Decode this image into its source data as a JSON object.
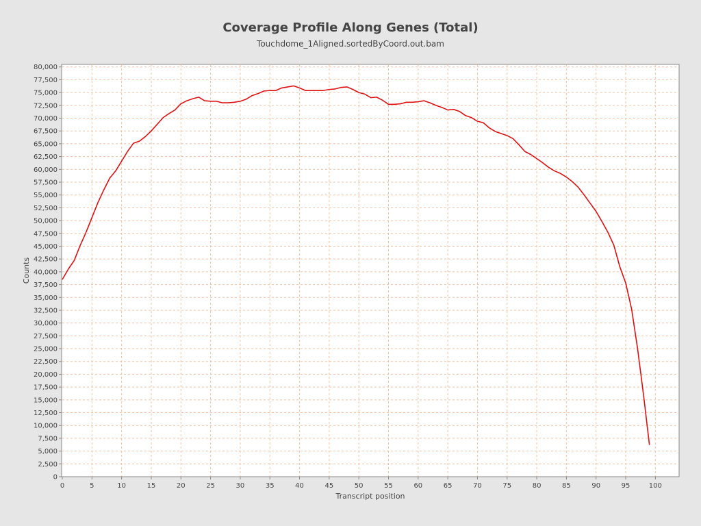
{
  "chart_data": {
    "type": "line",
    "title": "Coverage Profile Along Genes (Total)",
    "subtitle": "Touchdome_1Aligned.sortedByCoord.out.bam",
    "xlabel": "Transcript position",
    "ylabel": "Counts",
    "xlim": [
      0,
      104
    ],
    "ylim": [
      0,
      80500
    ],
    "x_ticks": [
      0,
      5,
      10,
      15,
      20,
      25,
      30,
      35,
      40,
      45,
      50,
      55,
      60,
      65,
      70,
      75,
      80,
      85,
      90,
      95,
      100
    ],
    "x_tick_labels": [
      "0",
      "5",
      "10",
      "15",
      "20",
      "25",
      "30",
      "35",
      "40",
      "45",
      "50",
      "55",
      "60",
      "65",
      "70",
      "75",
      "80",
      "85",
      "90",
      "95",
      "100"
    ],
    "y_ticks": [
      0,
      2500,
      5000,
      7500,
      10000,
      12500,
      15000,
      17500,
      20000,
      22500,
      25000,
      27500,
      30000,
      32500,
      35000,
      37500,
      40000,
      42500,
      45000,
      47500,
      50000,
      52500,
      55000,
      57500,
      60000,
      62500,
      65000,
      67500,
      70000,
      72500,
      75000,
      77500,
      80000
    ],
    "y_tick_labels": [
      "0",
      "2,500",
      "5,000",
      "7,500",
      "10,000",
      "12,500",
      "15,000",
      "17,500",
      "20,000",
      "22,500",
      "25,000",
      "27,500",
      "30,000",
      "32,500",
      "35,000",
      "37,500",
      "40,000",
      "42,500",
      "45,000",
      "47,500",
      "50,000",
      "52,500",
      "55,000",
      "57,500",
      "60,000",
      "62,500",
      "65,000",
      "67,500",
      "70,000",
      "72,500",
      "75,000",
      "77,500",
      "80,000"
    ],
    "grid": true,
    "line_color": "#dd1111",
    "grid_color": "#f2c0a0",
    "series": [
      {
        "x": [
          0,
          1,
          2,
          3,
          4,
          5,
          6,
          7,
          8,
          9,
          10,
          11,
          12,
          13,
          14,
          15,
          16,
          17,
          18,
          19,
          20,
          21,
          22,
          23,
          24,
          25,
          26,
          27,
          28,
          29,
          30,
          31,
          32,
          33,
          34,
          35,
          36,
          37,
          38,
          39,
          40,
          41,
          42,
          43,
          44,
          45,
          46,
          47,
          48,
          49,
          50,
          51,
          52,
          53,
          54,
          55,
          56,
          57,
          58,
          59,
          60,
          61,
          62,
          63,
          64,
          65,
          66,
          67,
          68,
          69,
          70,
          71,
          72,
          73,
          74,
          75,
          76,
          77,
          78,
          79,
          80,
          81,
          82,
          83,
          84,
          85,
          86,
          87,
          88,
          89,
          90,
          91,
          92,
          93,
          94,
          95,
          96,
          97,
          98,
          99
        ],
        "values": [
          38500,
          40500,
          42200,
          45100,
          47700,
          50600,
          53500,
          56000,
          58300,
          59700,
          61600,
          63500,
          65100,
          65500,
          66400,
          67500,
          68800,
          70100,
          70900,
          71600,
          72800,
          73400,
          73800,
          74100,
          73400,
          73300,
          73300,
          73000,
          73000,
          73100,
          73300,
          73700,
          74400,
          74800,
          75300,
          75400,
          75400,
          75900,
          76100,
          76300,
          75900,
          75400,
          75400,
          75400,
          75400,
          75600,
          75700,
          76000,
          76100,
          75600,
          75000,
          74700,
          74000,
          74100,
          73500,
          72700,
          72700,
          72800,
          73100,
          73100,
          73200,
          73400,
          73000,
          72500,
          72100,
          71600,
          71700,
          71300,
          70500,
          70100,
          69400,
          69100,
          68100,
          67400,
          67000,
          66600,
          66000,
          64800,
          63500,
          62900,
          62100,
          61300,
          60400,
          59700,
          59200,
          58500,
          57600,
          56500,
          55000,
          53400,
          51800,
          49800,
          47700,
          45200,
          41000,
          37800,
          32700,
          25000,
          16000,
          6200
        ]
      }
    ]
  }
}
